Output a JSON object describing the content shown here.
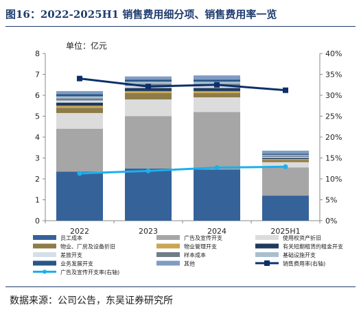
{
  "figure_title": "图16：2022-2025H1 销售费用细分项、销售费用率一览",
  "source_note": "数据来源：公司公告，东吴证券研究所",
  "chart_data": {
    "type": "bar",
    "stacked": true,
    "unit_label": "单位：亿元",
    "categories": [
      "2022",
      "2023",
      "2024",
      "2025H1"
    ],
    "y_left": {
      "min": 0,
      "max": 8,
      "ticks": [
        "0",
        "1",
        "2",
        "3",
        "4",
        "5",
        "6",
        "7",
        "8"
      ]
    },
    "y_right": {
      "min": 0,
      "max": 40,
      "ticks": [
        "0%",
        "5%",
        "10%",
        "15%",
        "20%",
        "25%",
        "30%",
        "35%",
        "40%"
      ]
    },
    "grid": false,
    "legend_position": "bottom",
    "series": [
      {
        "name": "员工成本",
        "color": "#36629a",
        "values": [
          2.35,
          2.5,
          2.45,
          1.2
        ]
      },
      {
        "name": "广告及宣传开支",
        "color": "#a6a6a6",
        "values": [
          2.05,
          2.5,
          2.75,
          1.35
        ]
      },
      {
        "name": "使用权资产折旧",
        "color": "#dcdcdc",
        "values": [
          0.75,
          0.8,
          0.7,
          0.25
        ]
      },
      {
        "name": "物业、厂房及设备折旧",
        "color": "#8d7b48",
        "values": [
          0.25,
          0.3,
          0.2,
          0.1
        ]
      },
      {
        "name": "物业管理开支",
        "color": "#c9a654",
        "values": [
          0.1,
          0.1,
          0.1,
          0.05
        ]
      },
      {
        "name": "有关短期租赁的租金开支",
        "color": "#203a5c",
        "values": [
          0.15,
          0.15,
          0.15,
          0.05
        ]
      },
      {
        "name": "差旅开支",
        "color": "#d5dfe8",
        "values": [
          0.1,
          0.1,
          0.1,
          0.05
        ]
      },
      {
        "name": "样本成本",
        "color": "#707c8a",
        "values": [
          0.1,
          0.1,
          0.1,
          0.05
        ]
      },
      {
        "name": "基础设施开支",
        "color": "#a9bfcf",
        "values": [
          0.1,
          0.1,
          0.1,
          0.05
        ]
      },
      {
        "name": "业务发展开支",
        "color": "#2a5687",
        "values": [
          0.1,
          0.1,
          0.1,
          0.05
        ]
      },
      {
        "name": "其他",
        "color": "#7f9cc4",
        "values": [
          0.15,
          0.15,
          0.2,
          0.15
        ]
      }
    ],
    "lines": [
      {
        "name": "广告及宣传开支率(右轴)",
        "color": "#1ab0ec",
        "axis": "right",
        "values": [
          11.3,
          11.9,
          12.7,
          12.9
        ]
      },
      {
        "name": "销售费用率(右轴)",
        "color": "#0c2f6b",
        "axis": "right",
        "values": [
          34.0,
          32.1,
          32.5,
          31.2
        ]
      }
    ]
  }
}
